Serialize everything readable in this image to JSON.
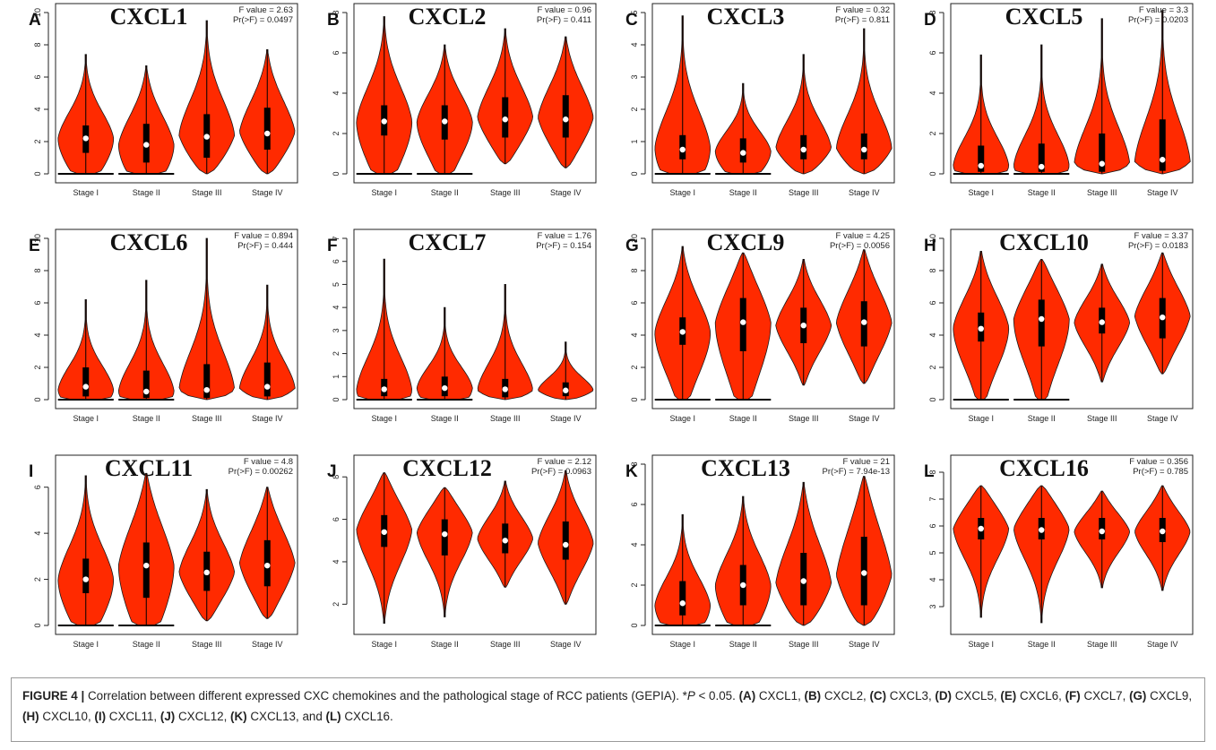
{
  "figure": {
    "caption": {
      "label": "FIGURE 4 |",
      "text_before_p": " Correlation between different expressed CXC chemokines and the pathological stage of RCC patients (GEPIA). *",
      "p_symbol": "P",
      "text_after_p": " < 0.05. ",
      "items": [
        {
          "tag": "(A)",
          "name": "CXCL1",
          "sep": ", "
        },
        {
          "tag": "(B)",
          "name": "CXCL2",
          "sep": ", "
        },
        {
          "tag": "(C)",
          "name": "CXCL3",
          "sep": ", "
        },
        {
          "tag": "(D)",
          "name": "CXCL5",
          "sep": ", "
        },
        {
          "tag": "(E)",
          "name": "CXCL6",
          "sep": ", "
        },
        {
          "tag": "(F)",
          "name": "CXCL7",
          "sep": ", "
        },
        {
          "tag": "(G)",
          "name": "CXCL9",
          "sep": ", "
        },
        {
          "tag": "(H)",
          "name": "CXCL10",
          "sep": ", "
        },
        {
          "tag": "(I)",
          "name": "CXCL11",
          "sep": ", "
        },
        {
          "tag": "(J)",
          "name": "CXCL12",
          "sep": ", "
        },
        {
          "tag": "(K)",
          "name": "CXCL13",
          "sep": ", and "
        },
        {
          "tag": "(L)",
          "name": "CXCL16",
          "sep": "."
        }
      ]
    },
    "colors": {
      "violin": "#ff2a00",
      "outline": "#1a1a1a",
      "box": "#000000",
      "median": "#ffffff"
    }
  },
  "chart_data": [
    {
      "type": "violin",
      "panel": "A",
      "title": "CXCL1",
      "f_text": "F value = 2.63",
      "p_text": "Pr(>F) = 0.0497",
      "categories": [
        "Stage I",
        "Stage II",
        "Stage III",
        "Stage IV"
      ],
      "ylim": [
        0,
        10
      ],
      "yticks": [
        0,
        2,
        4,
        6,
        8,
        10
      ],
      "series": [
        {
          "min": 0,
          "max": 7.4,
          "q1": 1.3,
          "median": 2.2,
          "q3": 3.0,
          "mode": 2.2,
          "floor": true
        },
        {
          "min": 0,
          "max": 6.7,
          "q1": 0.7,
          "median": 1.8,
          "q3": 3.1,
          "mode": 1.8,
          "floor": true
        },
        {
          "min": 0,
          "max": 9.5,
          "q1": 1.0,
          "median": 2.3,
          "q3": 3.7,
          "mode": 2.4,
          "floor": false
        },
        {
          "min": 0,
          "max": 7.7,
          "q1": 1.5,
          "median": 2.5,
          "q3": 4.1,
          "mode": 2.6,
          "floor": false
        }
      ]
    },
    {
      "type": "violin",
      "panel": "B",
      "title": "CXCL2",
      "f_text": "F value = 0.96",
      "p_text": "Pr(>F) = 0.411",
      "categories": [
        "Stage I",
        "Stage II",
        "Stage III",
        "Stage IV"
      ],
      "ylim": [
        0,
        8
      ],
      "yticks": [
        0,
        2,
        4,
        6,
        8
      ],
      "series": [
        {
          "min": 0,
          "max": 7.8,
          "q1": 1.9,
          "median": 2.6,
          "q3": 3.4,
          "mode": 2.6,
          "floor": true
        },
        {
          "min": 0,
          "max": 6.4,
          "q1": 1.7,
          "median": 2.6,
          "q3": 3.4,
          "mode": 2.6,
          "floor": true
        },
        {
          "min": 0.5,
          "max": 7.2,
          "q1": 1.8,
          "median": 2.7,
          "q3": 3.8,
          "mode": 2.8,
          "floor": false
        },
        {
          "min": 0.3,
          "max": 6.8,
          "q1": 1.8,
          "median": 2.7,
          "q3": 3.9,
          "mode": 2.8,
          "floor": false
        }
      ]
    },
    {
      "type": "violin",
      "panel": "C",
      "title": "CXCL3",
      "f_text": "F value = 0.32",
      "p_text": "Pr(>F) = 0.811",
      "categories": [
        "Stage I",
        "Stage II",
        "Stage III",
        "Stage IV"
      ],
      "ylim": [
        0,
        5
      ],
      "yticks": [
        0,
        1,
        2,
        3,
        4,
        5
      ],
      "series": [
        {
          "min": 0,
          "max": 4.9,
          "q1": 0.45,
          "median": 0.75,
          "q3": 1.2,
          "mode": 0.8,
          "floor": true
        },
        {
          "min": 0,
          "max": 2.8,
          "q1": 0.35,
          "median": 0.65,
          "q3": 1.1,
          "mode": 0.7,
          "floor": true
        },
        {
          "min": 0,
          "max": 3.7,
          "q1": 0.45,
          "median": 0.75,
          "q3": 1.2,
          "mode": 0.8,
          "floor": false
        },
        {
          "min": 0,
          "max": 4.5,
          "q1": 0.45,
          "median": 0.75,
          "q3": 1.25,
          "mode": 0.8,
          "floor": false
        }
      ]
    },
    {
      "type": "violin",
      "panel": "D",
      "title": "CXCL5",
      "f_text": "F value = 3.3",
      "p_text": "Pr(>F) = 0.0203",
      "categories": [
        "Stage I",
        "Stage II",
        "Stage III",
        "Stage IV"
      ],
      "ylim": [
        0,
        8
      ],
      "yticks": [
        0,
        2,
        4,
        6,
        8
      ],
      "series": [
        {
          "min": 0,
          "max": 5.9,
          "q1": 0.1,
          "median": 0.4,
          "q3": 1.4,
          "mode": 0.4,
          "floor": true
        },
        {
          "min": 0,
          "max": 6.4,
          "q1": 0.1,
          "median": 0.35,
          "q3": 1.5,
          "mode": 0.4,
          "floor": true
        },
        {
          "min": 0,
          "max": 7.7,
          "q1": 0.1,
          "median": 0.5,
          "q3": 2.0,
          "mode": 0.5,
          "floor": false
        },
        {
          "min": 0,
          "max": 8.1,
          "q1": 0.15,
          "median": 0.7,
          "q3": 2.7,
          "mode": 0.6,
          "floor": false
        }
      ]
    },
    {
      "type": "violin",
      "panel": "E",
      "title": "CXCL6",
      "f_text": "F value = 0.894",
      "p_text": "Pr(>F) = 0.444",
      "categories": [
        "Stage I",
        "Stage II",
        "Stage III",
        "Stage IV"
      ],
      "ylim": [
        0,
        10
      ],
      "yticks": [
        0,
        2,
        4,
        6,
        8,
        10
      ],
      "series": [
        {
          "min": 0,
          "max": 6.2,
          "q1": 0.2,
          "median": 0.8,
          "q3": 2.0,
          "mode": 0.6,
          "floor": true
        },
        {
          "min": 0,
          "max": 7.4,
          "q1": 0.1,
          "median": 0.5,
          "q3": 1.8,
          "mode": 0.5,
          "floor": true
        },
        {
          "min": 0,
          "max": 10,
          "q1": 0.1,
          "median": 0.6,
          "q3": 2.2,
          "mode": 0.6,
          "floor": false
        },
        {
          "min": 0,
          "max": 7.1,
          "q1": 0.2,
          "median": 0.8,
          "q3": 2.3,
          "mode": 0.7,
          "floor": false
        }
      ]
    },
    {
      "type": "violin",
      "panel": "F",
      "title": "CXCL7",
      "f_text": "F value = 1.76",
      "p_text": "Pr(>F) = 0.154",
      "categories": [
        "Stage I",
        "Stage II",
        "Stage III",
        "Stage IV"
      ],
      "ylim": [
        0,
        7
      ],
      "yticks": [
        0,
        1,
        2,
        3,
        4,
        5,
        6,
        7
      ],
      "series": [
        {
          "min": 0,
          "max": 6.1,
          "q1": 0.15,
          "median": 0.45,
          "q3": 0.9,
          "mode": 0.4,
          "floor": true
        },
        {
          "min": 0,
          "max": 4.0,
          "q1": 0.15,
          "median": 0.5,
          "q3": 1.0,
          "mode": 0.5,
          "floor": true
        },
        {
          "min": 0,
          "max": 5.0,
          "q1": 0.1,
          "median": 0.45,
          "q3": 0.9,
          "mode": 0.4,
          "floor": false
        },
        {
          "min": 0,
          "max": 2.5,
          "q1": 0.15,
          "median": 0.4,
          "q3": 0.75,
          "mode": 0.4,
          "floor": false
        }
      ]
    },
    {
      "type": "violin",
      "panel": "G",
      "title": "CXCL9",
      "f_text": "F value = 4.25",
      "p_text": "Pr(>F) = 0.0056",
      "categories": [
        "Stage I",
        "Stage II",
        "Stage III",
        "Stage IV"
      ],
      "ylim": [
        0,
        10
      ],
      "yticks": [
        0,
        2,
        4,
        6,
        8,
        10
      ],
      "series": [
        {
          "min": 0,
          "max": 9.5,
          "q1": 3.4,
          "median": 4.2,
          "q3": 5.1,
          "mode": 4.2,
          "floor": true
        },
        {
          "min": 0,
          "max": 9.1,
          "q1": 3.0,
          "median": 4.8,
          "q3": 6.3,
          "mode": 4.8,
          "floor": true
        },
        {
          "min": 0.9,
          "max": 8.7,
          "q1": 3.5,
          "median": 4.6,
          "q3": 5.7,
          "mode": 4.6,
          "floor": false
        },
        {
          "min": 1.0,
          "max": 9.3,
          "q1": 3.3,
          "median": 4.8,
          "q3": 6.1,
          "mode": 4.8,
          "floor": false
        }
      ]
    },
    {
      "type": "violin",
      "panel": "H",
      "title": "CXCL10",
      "f_text": "F value = 3.37",
      "p_text": "Pr(>F) = 0.0183",
      "categories": [
        "Stage I",
        "Stage II",
        "Stage III",
        "Stage IV"
      ],
      "ylim": [
        0,
        10
      ],
      "yticks": [
        0,
        2,
        4,
        6,
        8,
        10
      ],
      "series": [
        {
          "min": 0,
          "max": 9.2,
          "q1": 3.6,
          "median": 4.4,
          "q3": 5.4,
          "mode": 4.5,
          "floor": true
        },
        {
          "min": 0,
          "max": 8.7,
          "q1": 3.3,
          "median": 5.0,
          "q3": 6.2,
          "mode": 5.0,
          "floor": true
        },
        {
          "min": 1.1,
          "max": 8.4,
          "q1": 4.1,
          "median": 4.8,
          "q3": 5.7,
          "mode": 4.8,
          "floor": false
        },
        {
          "min": 1.6,
          "max": 9.1,
          "q1": 3.8,
          "median": 5.1,
          "q3": 6.3,
          "mode": 5.2,
          "floor": false
        }
      ]
    },
    {
      "type": "violin",
      "panel": "I",
      "title": "CXCL11",
      "f_text": "F value = 4.8",
      "p_text": "Pr(>F) = 0.00262",
      "categories": [
        "Stage I",
        "Stage II",
        "Stage III",
        "Stage IV"
      ],
      "ylim": [
        0,
        7
      ],
      "yticks": [
        0,
        2,
        4,
        6
      ],
      "series": [
        {
          "min": 0,
          "max": 6.5,
          "q1": 1.4,
          "median": 2.0,
          "q3": 2.9,
          "mode": 2.0,
          "floor": true
        },
        {
          "min": 0,
          "max": 6.6,
          "q1": 1.2,
          "median": 2.6,
          "q3": 3.6,
          "mode": 2.6,
          "floor": true
        },
        {
          "min": 0.2,
          "max": 5.9,
          "q1": 1.5,
          "median": 2.3,
          "q3": 3.2,
          "mode": 2.3,
          "floor": false
        },
        {
          "min": 0.3,
          "max": 6.0,
          "q1": 1.7,
          "median": 2.6,
          "q3": 3.7,
          "mode": 2.7,
          "floor": false
        }
      ]
    },
    {
      "type": "violin",
      "panel": "J",
      "title": "CXCL12",
      "f_text": "F value = 2.12",
      "p_text": "Pr(>F) = 0.0963",
      "categories": [
        "Stage I",
        "Stage II",
        "Stage III",
        "Stage IV"
      ],
      "ylim": [
        1,
        8.6
      ],
      "yticks": [
        2,
        4,
        6,
        8
      ],
      "series": [
        {
          "min": 1.1,
          "max": 8.2,
          "q1": 4.7,
          "median": 5.4,
          "q3": 6.2,
          "mode": 5.5,
          "floor": false
        },
        {
          "min": 1.4,
          "max": 7.5,
          "q1": 4.3,
          "median": 5.3,
          "q3": 6.0,
          "mode": 5.4,
          "floor": false
        },
        {
          "min": 2.8,
          "max": 7.8,
          "q1": 4.4,
          "median": 5.0,
          "q3": 5.8,
          "mode": 5.1,
          "floor": false
        },
        {
          "min": 2.0,
          "max": 8.3,
          "q1": 4.1,
          "median": 4.8,
          "q3": 5.9,
          "mode": 4.9,
          "floor": false
        }
      ]
    },
    {
      "type": "violin",
      "panel": "K",
      "title": "CXCL13",
      "f_text": "F value = 21",
      "p_text": "Pr(>F) = 7.94e-13",
      "categories": [
        "Stage I",
        "Stage II",
        "Stage III",
        "Stage IV"
      ],
      "ylim": [
        0,
        8
      ],
      "yticks": [
        0,
        2,
        4,
        6,
        8
      ],
      "series": [
        {
          "min": 0,
          "max": 5.5,
          "q1": 0.5,
          "median": 1.1,
          "q3": 2.2,
          "mode": 1.0,
          "floor": true
        },
        {
          "min": 0,
          "max": 6.4,
          "q1": 1.0,
          "median": 2.0,
          "q3": 3.0,
          "mode": 2.0,
          "floor": true
        },
        {
          "min": 0,
          "max": 7.1,
          "q1": 1.0,
          "median": 2.2,
          "q3": 3.6,
          "mode": 2.1,
          "floor": false
        },
        {
          "min": 0,
          "max": 7.4,
          "q1": 1.0,
          "median": 2.6,
          "q3": 4.4,
          "mode": 2.5,
          "floor": false
        }
      ]
    },
    {
      "type": "violin",
      "panel": "L",
      "title": "CXCL16",
      "f_text": "F value = 0.356",
      "p_text": "Pr(>F) = 0.785",
      "categories": [
        "Stage I",
        "Stage II",
        "Stage III",
        "Stage IV"
      ],
      "ylim": [
        2.3,
        8.3
      ],
      "yticks": [
        3,
        4,
        5,
        6,
        7,
        8
      ],
      "series": [
        {
          "min": 2.6,
          "max": 7.5,
          "q1": 5.5,
          "median": 5.9,
          "q3": 6.3,
          "mode": 5.9,
          "floor": false
        },
        {
          "min": 2.4,
          "max": 7.5,
          "q1": 5.5,
          "median": 5.85,
          "q3": 6.3,
          "mode": 5.9,
          "floor": false
        },
        {
          "min": 3.7,
          "max": 7.3,
          "q1": 5.5,
          "median": 5.8,
          "q3": 6.3,
          "mode": 5.8,
          "floor": false
        },
        {
          "min": 3.6,
          "max": 7.5,
          "q1": 5.4,
          "median": 5.8,
          "q3": 6.3,
          "mode": 5.8,
          "floor": false
        }
      ]
    }
  ]
}
